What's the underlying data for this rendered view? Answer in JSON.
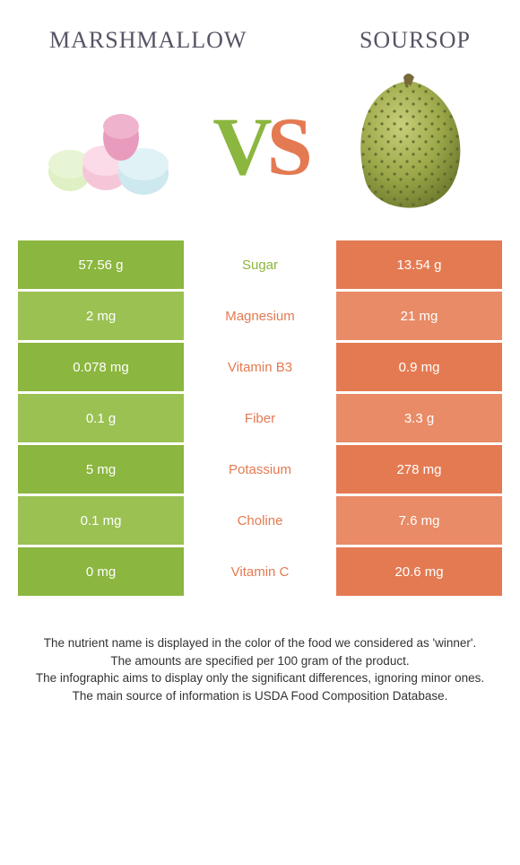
{
  "header": {
    "left_title": "MARSHMALLOW",
    "right_title": "SOURSOP"
  },
  "colors": {
    "left": "#8bb63f",
    "left_alt": "#9ac152",
    "right": "#e47a52",
    "right_alt": "#e88b66",
    "mid_winner_left": "#e47a52",
    "mid_winner_right": "#8bb63f"
  },
  "rows": [
    {
      "label": "Sugar",
      "left": "57.56 g",
      "right": "13.54 g",
      "winner": "left"
    },
    {
      "label": "Magnesium",
      "left": "2 mg",
      "right": "21 mg",
      "winner": "right"
    },
    {
      "label": "Vitamin B3",
      "left": "0.078 mg",
      "right": "0.9 mg",
      "winner": "right"
    },
    {
      "label": "Fiber",
      "left": "0.1 g",
      "right": "3.3 g",
      "winner": "right"
    },
    {
      "label": "Potassium",
      "left": "5 mg",
      "right": "278 mg",
      "winner": "right"
    },
    {
      "label": "Choline",
      "left": "0.1 mg",
      "right": "7.6 mg",
      "winner": "right"
    },
    {
      "label": "Vitamin C",
      "left": "0 mg",
      "right": "20.6 mg",
      "winner": "right"
    }
  ],
  "footer": {
    "l1": "The nutrient name is displayed in the color of the food we considered as 'winner'.",
    "l2": "The amounts are specified per 100 gram of the product.",
    "l3": "The infographic aims to display only the significant differences, ignoring minor ones.",
    "l4": "The main source of information is USDA Food Composition Database."
  }
}
